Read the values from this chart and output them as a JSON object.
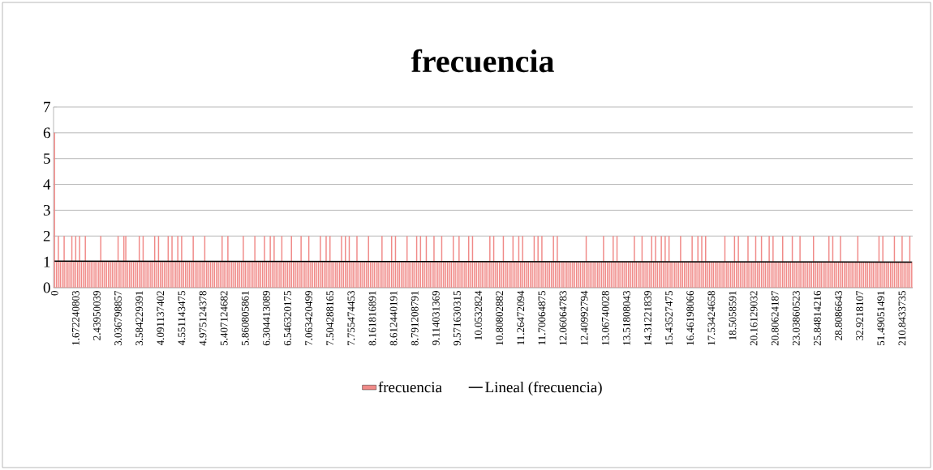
{
  "chart_data": {
    "type": "bar",
    "title": "frecuencia",
    "categories": [
      "0",
      null,
      null,
      null,
      null,
      null,
      null,
      null,
      null,
      null,
      null,
      "1.672240803",
      null,
      null,
      null,
      null,
      null,
      null,
      null,
      null,
      null,
      null,
      "2.43950039",
      null,
      null,
      null,
      null,
      null,
      null,
      null,
      null,
      null,
      null,
      "3.036798857",
      null,
      null,
      null,
      null,
      null,
      null,
      null,
      null,
      null,
      null,
      "3.584229391",
      null,
      null,
      null,
      null,
      null,
      null,
      null,
      null,
      null,
      null,
      "4.091137402",
      null,
      null,
      null,
      null,
      null,
      null,
      null,
      null,
      null,
      null,
      "4.551143475",
      null,
      null,
      null,
      null,
      null,
      null,
      null,
      null,
      null,
      null,
      "4.975124378",
      null,
      null,
      null,
      null,
      null,
      null,
      null,
      null,
      null,
      null,
      "5.407124682",
      null,
      null,
      null,
      null,
      null,
      null,
      null,
      null,
      null,
      null,
      "5.860805861",
      null,
      null,
      null,
      null,
      null,
      null,
      null,
      null,
      null,
      null,
      "6.304413089",
      null,
      null,
      null,
      null,
      null,
      null,
      null,
      null,
      null,
      null,
      "6.546320175",
      null,
      null,
      null,
      null,
      null,
      null,
      null,
      null,
      null,
      null,
      "7.063420499",
      null,
      null,
      null,
      null,
      null,
      null,
      null,
      null,
      null,
      null,
      "7.504288165",
      null,
      null,
      null,
      null,
      null,
      null,
      null,
      null,
      null,
      null,
      "7.755474453",
      null,
      null,
      null,
      null,
      null,
      null,
      null,
      null,
      null,
      null,
      "8.161816891",
      null,
      null,
      null,
      null,
      null,
      null,
      null,
      null,
      null,
      null,
      "8.612440191",
      null,
      null,
      null,
      null,
      null,
      null,
      null,
      null,
      null,
      null,
      "8.791208791",
      null,
      null,
      null,
      null,
      null,
      null,
      null,
      null,
      null,
      null,
      "9.114031369",
      null,
      null,
      null,
      null,
      null,
      null,
      null,
      null,
      null,
      null,
      "9.571630315",
      null,
      null,
      null,
      null,
      null,
      null,
      null,
      null,
      null,
      null,
      "10.0532824",
      null,
      null,
      null,
      null,
      null,
      null,
      null,
      null,
      null,
      null,
      "10.80802882",
      null,
      null,
      null,
      null,
      null,
      null,
      null,
      null,
      null,
      null,
      "11.26472094",
      null,
      null,
      null,
      null,
      null,
      null,
      null,
      null,
      null,
      null,
      "11.70064875",
      null,
      null,
      null,
      null,
      null,
      null,
      null,
      null,
      null,
      null,
      "12.06064783",
      null,
      null,
      null,
      null,
      null,
      null,
      null,
      null,
      null,
      null,
      "12.40992794",
      null,
      null,
      null,
      null,
      null,
      null,
      null,
      null,
      null,
      null,
      "13.06740028",
      null,
      null,
      null,
      null,
      null,
      null,
      null,
      null,
      null,
      null,
      "13.51808043",
      null,
      null,
      null,
      null,
      null,
      null,
      null,
      null,
      null,
      null,
      "14.31221839",
      null,
      null,
      null,
      null,
      null,
      null,
      null,
      null,
      null,
      null,
      "15.43527475",
      null,
      null,
      null,
      null,
      null,
      null,
      null,
      null,
      null,
      null,
      "16.46198066",
      null,
      null,
      null,
      null,
      null,
      null,
      null,
      null,
      null,
      null,
      "17.53424658",
      null,
      null,
      null,
      null,
      null,
      null,
      null,
      null,
      null,
      null,
      "18.5058591",
      null,
      null,
      null,
      null,
      null,
      null,
      null,
      null,
      null,
      null,
      "20.16129032",
      null,
      null,
      null,
      null,
      null,
      null,
      null,
      null,
      null,
      null,
      "20.80624187",
      null,
      null,
      null,
      null,
      null,
      null,
      null,
      null,
      null,
      null,
      "23.03860523",
      null,
      null,
      null,
      null,
      null,
      null,
      null,
      null,
      null,
      null,
      "25.84814216",
      null,
      null,
      null,
      null,
      null,
      null,
      null,
      null,
      null,
      null,
      "28.8086643",
      null,
      null,
      null,
      null,
      null,
      null,
      null,
      null,
      null,
      null,
      "32.9218107",
      null,
      null,
      null,
      null,
      null,
      null,
      null,
      null,
      null,
      null,
      "51.49051491",
      null,
      null,
      null,
      null,
      null,
      null,
      null,
      null,
      null,
      null,
      "210.8433735",
      null,
      null,
      null,
      null,
      null
    ],
    "series": [
      {
        "name": "frecuencia",
        "color": "#f08a88",
        "values": [
          6,
          1,
          2,
          1,
          1,
          2,
          1,
          1,
          1,
          2,
          1,
          2,
          1,
          2,
          1,
          1,
          2,
          1,
          1,
          1,
          1,
          1,
          1,
          1,
          2,
          1,
          1,
          1,
          1,
          1,
          1,
          1,
          1,
          2,
          1,
          1,
          2,
          2,
          1,
          1,
          1,
          1,
          1,
          1,
          2,
          1,
          2,
          1,
          1,
          1,
          1,
          1,
          2,
          1,
          2,
          1,
          1,
          1,
          1,
          2,
          1,
          2,
          1,
          1,
          2,
          1,
          2,
          1,
          1,
          1,
          1,
          1,
          2,
          1,
          1,
          1,
          1,
          1,
          2,
          1,
          1,
          1,
          1,
          1,
          1,
          1,
          1,
          2,
          1,
          1,
          2,
          1,
          1,
          1,
          1,
          1,
          1,
          1,
          2,
          1,
          1,
          1,
          1,
          1,
          2,
          1,
          1,
          1,
          1,
          2,
          1,
          1,
          2,
          1,
          2,
          1,
          1,
          1,
          2,
          1,
          1,
          1,
          1,
          2,
          1,
          1,
          1,
          1,
          2,
          1,
          1,
          1,
          2,
          1,
          1,
          1,
          1,
          1,
          2,
          1,
          1,
          2,
          1,
          2,
          1,
          1,
          1,
          1,
          1,
          2,
          1,
          2,
          1,
          2,
          1,
          1,
          1,
          2,
          1,
          1,
          1,
          1,
          1,
          2,
          1,
          1,
          1,
          1,
          1,
          1,
          2,
          1,
          1,
          1,
          1,
          2,
          1,
          2,
          1,
          1,
          1,
          1,
          1,
          2,
          1,
          1,
          1,
          1,
          2,
          1,
          2,
          1,
          1,
          2,
          1,
          1,
          1,
          2,
          1,
          1,
          1,
          2,
          1,
          1,
          1,
          1,
          1,
          2,
          1,
          1,
          2,
          1,
          1,
          1,
          1,
          2,
          1,
          2,
          1,
          1,
          1,
          1,
          1,
          1,
          1,
          1,
          2,
          1,
          2,
          1,
          1,
          1,
          1,
          2,
          1,
          1,
          1,
          1,
          2,
          1,
          1,
          2,
          1,
          2,
          1,
          1,
          1,
          1,
          1,
          2,
          1,
          2,
          1,
          2,
          1,
          1,
          1,
          1,
          1,
          2,
          1,
          2,
          1,
          1,
          1,
          1,
          1,
          1,
          1,
          1,
          1,
          1,
          1,
          1,
          1,
          1,
          2,
          1,
          1,
          1,
          1,
          1,
          1,
          1,
          1,
          2,
          1,
          1,
          1,
          1,
          2,
          1,
          2,
          1,
          1,
          1,
          1,
          1,
          1,
          1,
          1,
          2,
          1,
          1,
          1,
          2,
          1,
          1,
          1,
          1,
          2,
          1,
          2,
          1,
          1,
          2,
          1,
          2,
          1,
          2,
          1,
          1,
          1,
          1,
          1,
          2,
          1,
          1,
          1,
          1,
          1,
          2,
          1,
          1,
          2,
          1,
          2,
          1,
          2,
          1,
          1,
          1,
          1,
          1,
          1,
          1,
          1,
          1,
          2,
          1,
          1,
          1,
          1,
          2,
          1,
          2,
          1,
          1,
          1,
          1,
          2,
          1,
          1,
          1,
          2,
          1,
          1,
          2,
          1,
          1,
          1,
          2,
          1,
          2,
          1,
          1,
          1,
          1,
          2,
          1,
          1,
          1,
          1,
          2,
          1,
          1,
          1,
          2,
          1,
          1,
          1,
          1,
          1,
          1,
          2,
          1,
          1,
          1,
          1,
          1,
          1,
          1,
          2,
          1,
          2,
          1,
          1,
          1,
          2,
          1,
          1,
          1,
          1,
          1,
          1,
          1,
          1,
          2,
          1,
          1,
          1,
          1,
          1,
          1,
          1,
          1,
          1,
          1,
          2,
          1,
          2,
          1,
          1,
          1,
          1,
          1,
          2,
          1,
          1,
          1,
          2,
          1,
          1,
          1,
          2,
          1
        ]
      },
      {
        "name": "Lineal (frecuencia)",
        "type": "line",
        "color": "#000000",
        "values": [
          1.03,
          null,
          null,
          null,
          null,
          null,
          null,
          null,
          null,
          null,
          null,
          null,
          null,
          null,
          null,
          null,
          null,
          null,
          null,
          null,
          null,
          null,
          null,
          null,
          null,
          null,
          null,
          null,
          null,
          null,
          null,
          null,
          null,
          null,
          null,
          null,
          null,
          null,
          null,
          null,
          null,
          null,
          null,
          null,
          null,
          null,
          null,
          null,
          null,
          null,
          null,
          null,
          null,
          null,
          null,
          null,
          null,
          null,
          null,
          null,
          null,
          null,
          null,
          null,
          null,
          null,
          null,
          null,
          null,
          null,
          null,
          null,
          null,
          null,
          null,
          null,
          null,
          null,
          null,
          null,
          null,
          null,
          null,
          null,
          null,
          null,
          null,
          null,
          null,
          null,
          null,
          null,
          null,
          null,
          null,
          null,
          null,
          null,
          null,
          null,
          null,
          null,
          null,
          null,
          null,
          null,
          null,
          null,
          null,
          null,
          null,
          null,
          null,
          null,
          null,
          null,
          null,
          null,
          null,
          null,
          null,
          null,
          null,
          null,
          null,
          null,
          null,
          null,
          null,
          null,
          null,
          null,
          null,
          null,
          null,
          null,
          null,
          null,
          null,
          null,
          null,
          null,
          null,
          null,
          null,
          null,
          null,
          null,
          null,
          null,
          null,
          null,
          null,
          null,
          null,
          null,
          null,
          null,
          null,
          null,
          null,
          null,
          null,
          null,
          null,
          null,
          null,
          null,
          null,
          null,
          null,
          null,
          null,
          null,
          null,
          null,
          null,
          null,
          null,
          null,
          null,
          null,
          null,
          null,
          null,
          null,
          null,
          null,
          null,
          null,
          null,
          null,
          null,
          null,
          null,
          null,
          null,
          null,
          null,
          null,
          null,
          null,
          null,
          null,
          null,
          null,
          null,
          null,
          null,
          null,
          null,
          null,
          null,
          null,
          null,
          null,
          null,
          null,
          null,
          null,
          null,
          null,
          null,
          null,
          null,
          null,
          null,
          null,
          null,
          null,
          null,
          null,
          null,
          null,
          null,
          null,
          null,
          null,
          null,
          null,
          null,
          null,
          null,
          null,
          null,
          null,
          null,
          null,
          null,
          null,
          null,
          null,
          null,
          null,
          null,
          null,
          null,
          null,
          null,
          null,
          null,
          null,
          null,
          null,
          null,
          null,
          null,
          null,
          null,
          null,
          null,
          null,
          null,
          null,
          null,
          null,
          null,
          null,
          null,
          null,
          null,
          null,
          null,
          null,
          null,
          null,
          null,
          null,
          null,
          null,
          null,
          null,
          null,
          null,
          null,
          null,
          null,
          null,
          null,
          null,
          null,
          null,
          null,
          null,
          null,
          null,
          null,
          null,
          null,
          null,
          null,
          null,
          null,
          null,
          null,
          null,
          null,
          null,
          null,
          null,
          null,
          null,
          null,
          null,
          null,
          null,
          null,
          null,
          null,
          null,
          null,
          null,
          null,
          null,
          null,
          null,
          null,
          null,
          null,
          null,
          null,
          null,
          null,
          null,
          null,
          null,
          null,
          null,
          null,
          null,
          null,
          null,
          null,
          null,
          null,
          null,
          null,
          null,
          null,
          null,
          null,
          null,
          null,
          null,
          null,
          null,
          null,
          null,
          null,
          null,
          null,
          null,
          null,
          null,
          null,
          null,
          null,
          null,
          null,
          null,
          null,
          null,
          null,
          null,
          null,
          null,
          null,
          null,
          null,
          null,
          null,
          null,
          null,
          null,
          null,
          null,
          null,
          null,
          null,
          null,
          null,
          null,
          null,
          null,
          null,
          null,
          null,
          null,
          null,
          null,
          null,
          null,
          null,
          null,
          null,
          null,
          null,
          null,
          null,
          null,
          null,
          null,
          null,
          null,
          null,
          null,
          null,
          null,
          null,
          null,
          null,
          null,
          null,
          null,
          null,
          null,
          null,
          null,
          null,
          null,
          null,
          null,
          null,
          null,
          null,
          0.99
        ]
      }
    ],
    "ylim": [
      0,
      7
    ],
    "yticks": [
      0,
      1,
      2,
      3,
      4,
      5,
      6,
      7
    ],
    "grid": "y",
    "legend": "bottom"
  }
}
